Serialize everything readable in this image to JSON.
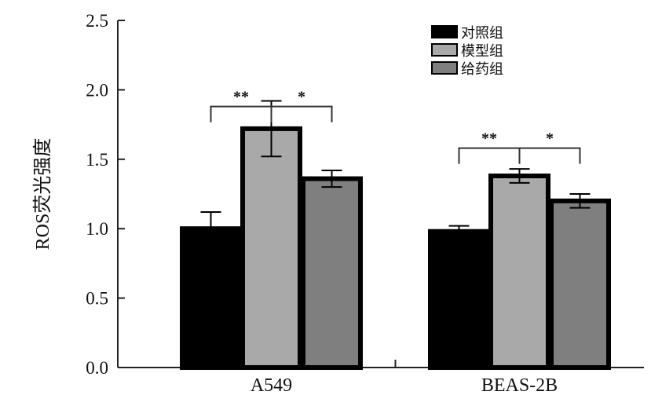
{
  "chart_data": {
    "type": "bar",
    "title": "",
    "xlabel": "",
    "ylabel": "ROS荧光强度",
    "ylim": [
      0,
      2.5
    ],
    "yticks": [
      "0.0",
      "0.5",
      "1.0",
      "1.5",
      "2.0",
      "2.5"
    ],
    "categories": [
      "A549",
      "BEAS-2B"
    ],
    "series": [
      {
        "name": "对照组",
        "color": "#000000",
        "values": [
          1.0,
          0.98
        ],
        "errors": [
          0.12,
          0.04
        ]
      },
      {
        "name": "模型组",
        "color": "#a9a9a9",
        "values": [
          1.72,
          1.38
        ],
        "errors": [
          0.2,
          0.05
        ]
      },
      {
        "name": "给药组",
        "color": "#7f7f7f",
        "values": [
          1.36,
          1.2
        ],
        "errors": [
          0.06,
          0.05
        ]
      }
    ],
    "significance": [
      {
        "category": 0,
        "from": 0,
        "to": 1,
        "label": "**",
        "level": 1.88
      },
      {
        "category": 0,
        "from": 1,
        "to": 2,
        "label": "*",
        "level": 1.88
      },
      {
        "category": 1,
        "from": 0,
        "to": 1,
        "label": "**",
        "level": 1.58
      },
      {
        "category": 1,
        "from": 1,
        "to": 2,
        "label": "*",
        "level": 1.58
      }
    ],
    "legend_position": "top-right",
    "grid": false
  }
}
